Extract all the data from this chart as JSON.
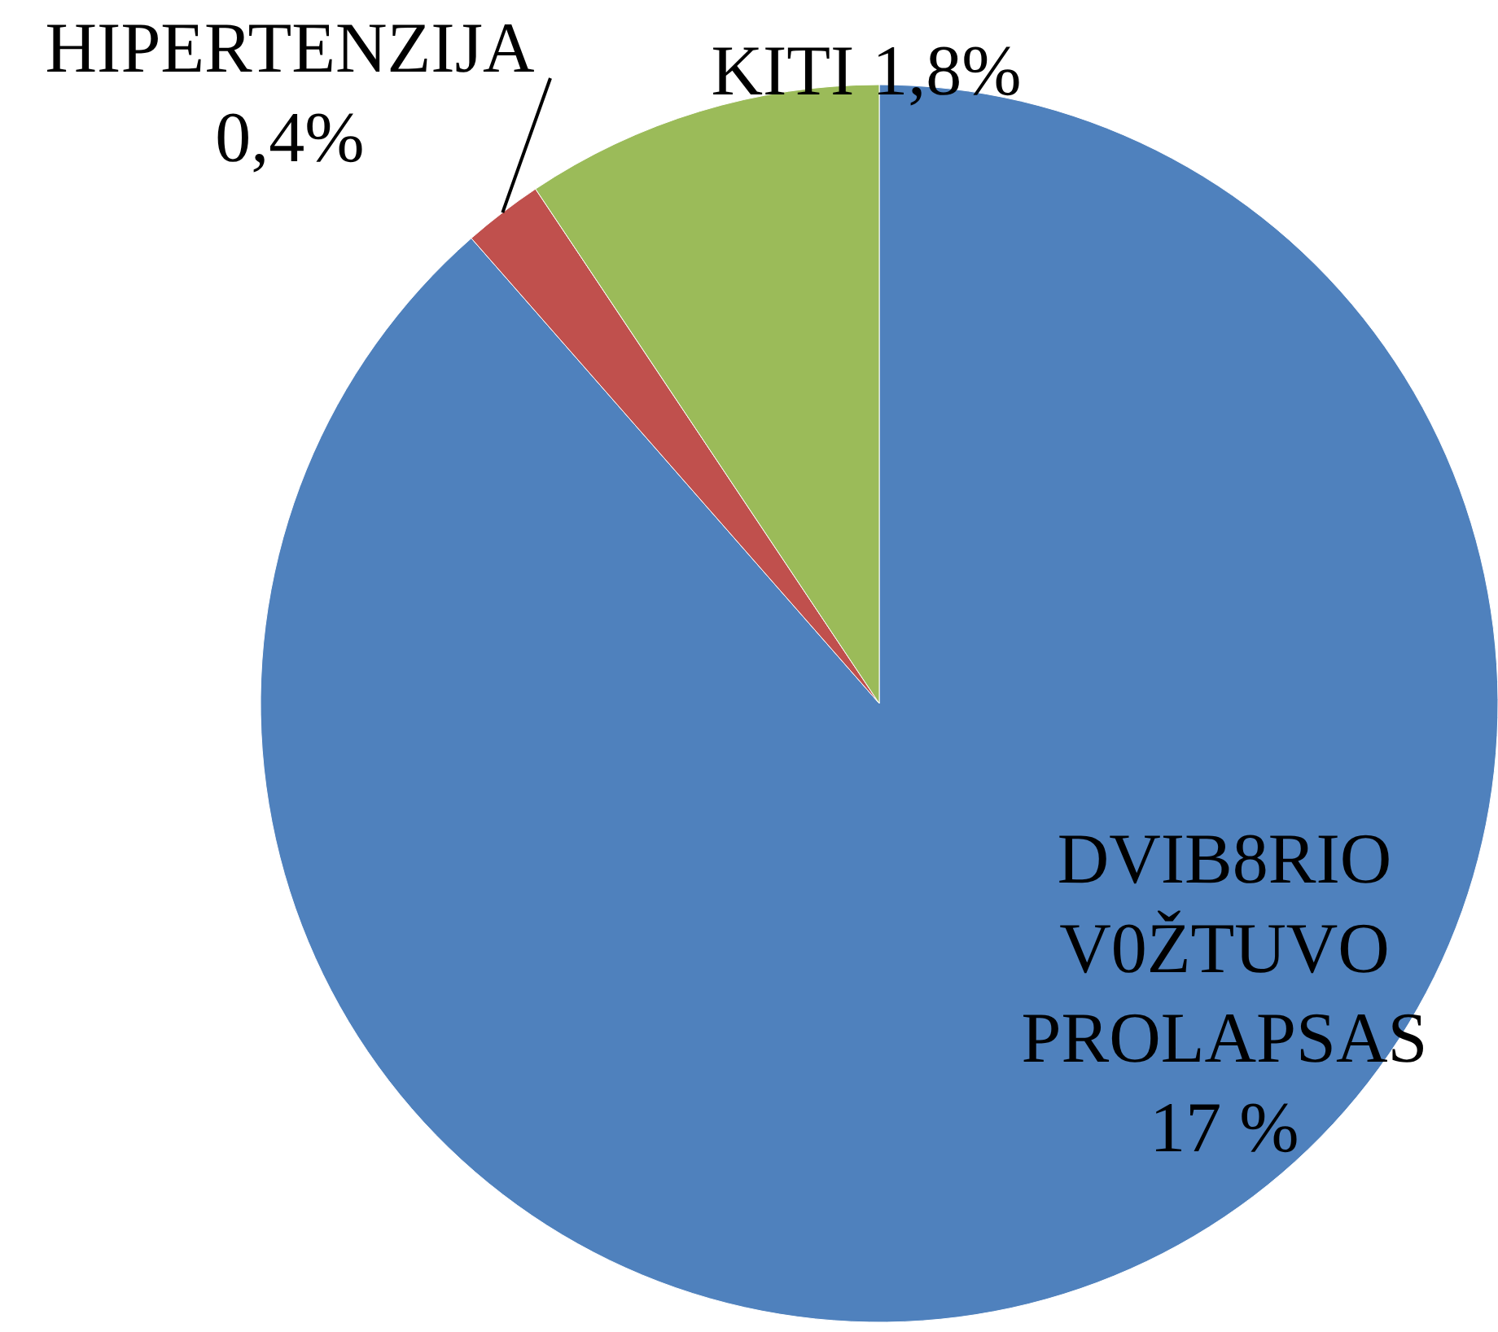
{
  "chart_data": {
    "type": "pie",
    "categories": [
      "DVIB8RIO V0ŽTUVO PROLAPSAS",
      "HIPERTENZIJA",
      "KITI"
    ],
    "values": [
      17,
      0.4,
      1.8
    ],
    "colors": [
      "#4f81bd",
      "#c0504d",
      "#9bbb59"
    ],
    "value_labels": [
      "17 %",
      "0,4%",
      "1,8%"
    ]
  }
}
